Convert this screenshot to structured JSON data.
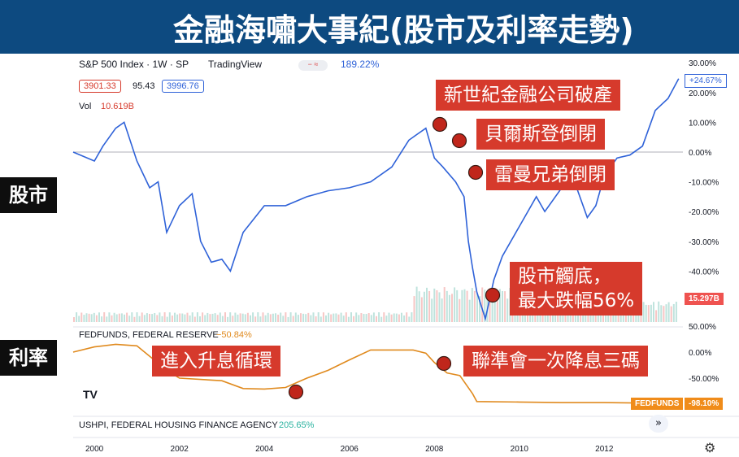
{
  "banner": {
    "title": "金融海嘯大事紀(股市及利率走勢)"
  },
  "side_labels": {
    "stocks": "股市",
    "rates": "利率"
  },
  "chart_header": {
    "symbol": "S&P 500 Index · 1W · SP",
    "source": "TradingView",
    "change_pct": "189.22%",
    "bid": "3901.33",
    "spread": "95.43",
    "ask": "3996.76",
    "vol_label": "Vol",
    "vol_value": "10.619B",
    "volume_tag": "15.297B",
    "price_change_tag": "+24.67%"
  },
  "fed_header": {
    "label": "FEDFUNDS, FEDERAL RESERVE",
    "value": "−50.84%",
    "tag_name": "FEDFUNDS",
    "tag_value": "-98.10%"
  },
  "ushpi": {
    "label": "USHPI, FEDERAL HOUSING FINANCE AGENCY",
    "value": "205.65%"
  },
  "callouts": {
    "c1": "新世紀金融公司破產",
    "c2": "貝爾斯登倒閉",
    "c3": "雷曼兄弟倒閉",
    "c4a": "股市觸底，",
    "c4b": "最大跌幅56%",
    "c5": "進入升息循環",
    "c6": "聯準會一次降息三碼"
  },
  "colors": {
    "price": "#2f62d8",
    "fed": "#e08a1e",
    "callout": "#d63a2c",
    "banner": "#0d4a80",
    "marker": "#c0261b"
  },
  "chart_data": [
    {
      "type": "line",
      "title": "S&P 500 Index · 1W · SP",
      "series": [
        {
          "name": "S&P 500 Index",
          "x": [
            1999.5,
            2000.0,
            2000.2,
            2000.5,
            2000.7,
            2001.0,
            2001.3,
            2001.5,
            2001.7,
            2002.0,
            2002.3,
            2002.5,
            2002.75,
            2003.0,
            2003.2,
            2003.5,
            2004.0,
            2004.5,
            2005.0,
            2005.5,
            2006.0,
            2006.5,
            2007.0,
            2007.4,
            2007.6,
            2007.8,
            2008.0,
            2008.2,
            2008.5,
            2008.7,
            2008.8,
            2008.9,
            2009.0,
            2009.2,
            2009.4,
            2009.6,
            2010.0,
            2010.4,
            2010.6,
            2011.0,
            2011.3,
            2011.6,
            2011.8,
            2012.0,
            2012.3,
            2012.6,
            2012.9,
            2013.2,
            2013.5,
            2013.75
          ],
          "values": [
            0,
            -3,
            2,
            8,
            10,
            -3,
            -12,
            -10,
            -27,
            -18,
            -14,
            -30,
            -37,
            -36,
            -40,
            -27,
            -18,
            -18,
            -15,
            -13,
            -12,
            -10,
            -5,
            4,
            6,
            8,
            -2,
            -5,
            -10,
            -15,
            -30,
            -39,
            -47,
            -56,
            -43,
            -35,
            -25,
            -15,
            -20,
            -12,
            -10,
            -22,
            -18,
            -8,
            -2,
            -1,
            2,
            14,
            18,
            24.67
          ]
        }
      ],
      "xlim": [
        1999.5,
        2013.85
      ],
      "ylim": [
        -56,
        30
      ],
      "ticks_y": [
        "30.00%",
        "20.00%",
        "10.00%",
        "0.00%",
        "-10.00%",
        "-20.00%",
        "-30.00%",
        "-40.00%"
      ],
      "ticks_x": [
        "2000",
        "2002",
        "2004",
        "2006",
        "2008",
        "2010",
        "2012"
      ],
      "grid": false
    },
    {
      "type": "line",
      "title": "FEDFUNDS, FEDERAL RESERVE",
      "series": [
        {
          "name": "FEDFUNDS",
          "x": [
            1999.5,
            2000.0,
            2000.5,
            2001.0,
            2001.3,
            2001.7,
            2002.0,
            2003.0,
            2003.5,
            2004.0,
            2004.5,
            2005.0,
            2005.5,
            2006.0,
            2006.5,
            2007.5,
            2007.8,
            2008.0,
            2008.3,
            2008.6,
            2008.9,
            2009.0,
            2010.0,
            2011.0,
            2012.0,
            2013.0,
            2013.75
          ],
          "values": [
            0,
            10,
            15,
            12,
            -8,
            -35,
            -50,
            -55,
            -70,
            -71,
            -68,
            -50,
            -35,
            -15,
            4,
            4,
            -2,
            -20,
            -40,
            -45,
            -80,
            -95,
            -96,
            -97,
            -97,
            -98,
            -98.1
          ]
        }
      ],
      "ylim": [
        -100,
        50
      ],
      "ticks_y": [
        "50.00%",
        "0.00%",
        "-50.00%"
      ]
    }
  ]
}
